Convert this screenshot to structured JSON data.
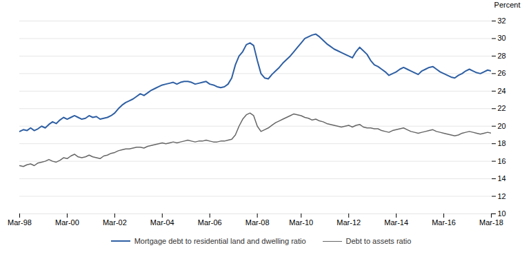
{
  "chart_data": {
    "type": "line",
    "ylabel": "Percent",
    "categories": [
      "Mar-98",
      null,
      null,
      null,
      null,
      null,
      null,
      null,
      null,
      null,
      null,
      null,
      null,
      "Mar-00",
      null,
      null,
      null,
      null,
      null,
      null,
      null,
      null,
      null,
      null,
      null,
      null,
      "Mar-02",
      null,
      null,
      null,
      null,
      null,
      null,
      null,
      null,
      null,
      null,
      null,
      null,
      "Mar-04",
      null,
      null,
      null,
      null,
      null,
      null,
      null,
      null,
      null,
      null,
      null,
      null,
      "Mar-06",
      null,
      null,
      null,
      null,
      null,
      null,
      null,
      null,
      null,
      null,
      null,
      null,
      "Mar-08",
      null,
      null,
      null,
      null,
      null,
      null,
      null,
      null,
      null,
      null,
      null,
      "Mar-10",
      null,
      null,
      null,
      null,
      null,
      null,
      null,
      null,
      null,
      null,
      null,
      null,
      "Mar-12",
      null,
      null,
      null,
      null,
      null,
      null,
      null,
      null,
      null,
      null,
      null,
      null,
      "Mar-14",
      null,
      null,
      null,
      null,
      null,
      null,
      null,
      null,
      null,
      null,
      null,
      null,
      "Mar-16",
      null,
      null,
      null,
      null,
      null,
      null,
      null,
      null,
      null,
      null,
      null,
      null,
      "Mar-18"
    ],
    "series": [
      {
        "name": "Mortgage debt to residential land and dwelling ratio",
        "color": "#2e5fa3",
        "values": [
          19.4,
          19.6,
          19.5,
          19.8,
          19.5,
          19.7,
          20.0,
          19.8,
          20.2,
          20.5,
          20.3,
          20.7,
          21.0,
          20.8,
          21.0,
          21.2,
          21.0,
          20.8,
          20.9,
          21.2,
          21.0,
          21.1,
          20.8,
          20.9,
          21.0,
          21.2,
          21.5,
          22.0,
          22.4,
          22.7,
          22.9,
          23.1,
          23.4,
          23.7,
          23.5,
          23.8,
          24.1,
          24.3,
          24.5,
          24.7,
          24.8,
          24.9,
          25.0,
          24.8,
          25.0,
          25.1,
          25.1,
          25.0,
          24.8,
          24.9,
          25.0,
          25.1,
          24.8,
          24.7,
          24.5,
          24.4,
          24.5,
          24.8,
          25.5,
          27.0,
          28.0,
          28.5,
          29.3,
          29.5,
          29.2,
          27.5,
          26.0,
          25.5,
          25.4,
          25.9,
          26.3,
          26.7,
          27.2,
          27.6,
          28.0,
          28.5,
          29.0,
          29.5,
          30.0,
          30.2,
          30.4,
          30.5,
          30.2,
          29.8,
          29.4,
          29.1,
          28.8,
          28.6,
          28.4,
          28.2,
          28.0,
          27.8,
          28.5,
          29.0,
          28.6,
          28.2,
          27.5,
          27.0,
          26.8,
          26.5,
          26.2,
          25.8,
          26.0,
          26.2,
          26.5,
          26.7,
          26.5,
          26.3,
          26.1,
          25.9,
          26.3,
          26.5,
          26.7,
          26.8,
          26.5,
          26.2,
          26.0,
          25.8,
          25.6,
          25.5,
          25.8,
          26.0,
          26.3,
          26.5,
          26.3,
          26.1,
          26.0,
          26.2,
          26.4,
          26.3
        ]
      },
      {
        "name": "Debt to assets ratio",
        "color": "#666666",
        "values": [
          15.5,
          15.4,
          15.6,
          15.7,
          15.5,
          15.8,
          15.9,
          16.0,
          16.2,
          16.0,
          15.9,
          16.1,
          16.4,
          16.3,
          16.6,
          16.8,
          16.5,
          16.4,
          16.5,
          16.7,
          16.5,
          16.4,
          16.3,
          16.6,
          16.7,
          16.9,
          17.0,
          17.2,
          17.3,
          17.4,
          17.4,
          17.5,
          17.6,
          17.6,
          17.5,
          17.7,
          17.8,
          17.9,
          18.0,
          18.1,
          18.0,
          18.1,
          18.2,
          18.1,
          18.2,
          18.3,
          18.4,
          18.3,
          18.2,
          18.3,
          18.3,
          18.4,
          18.3,
          18.2,
          18.2,
          18.3,
          18.3,
          18.4,
          18.5,
          19.0,
          20.0,
          20.8,
          21.3,
          21.5,
          21.2,
          20.0,
          19.4,
          19.6,
          19.8,
          20.1,
          20.4,
          20.6,
          20.8,
          21.0,
          21.2,
          21.4,
          21.3,
          21.2,
          21.0,
          20.9,
          20.7,
          20.8,
          20.6,
          20.5,
          20.3,
          20.2,
          20.1,
          20.0,
          19.9,
          20.0,
          20.1,
          19.9,
          20.1,
          20.2,
          19.9,
          19.8,
          19.8,
          19.7,
          19.7,
          19.5,
          19.4,
          19.3,
          19.5,
          19.6,
          19.7,
          19.8,
          19.6,
          19.4,
          19.3,
          19.2,
          19.3,
          19.4,
          19.5,
          19.6,
          19.4,
          19.3,
          19.2,
          19.1,
          19.0,
          18.9,
          19.0,
          19.2,
          19.3,
          19.4,
          19.3,
          19.2,
          19.1,
          19.2,
          19.3,
          19.2
        ]
      }
    ],
    "ylim": [
      10,
      32
    ],
    "yticks": [
      10,
      12,
      14,
      16,
      18,
      20,
      22,
      24,
      26,
      28,
      30,
      32
    ],
    "grid": true,
    "legend": "bottom"
  }
}
